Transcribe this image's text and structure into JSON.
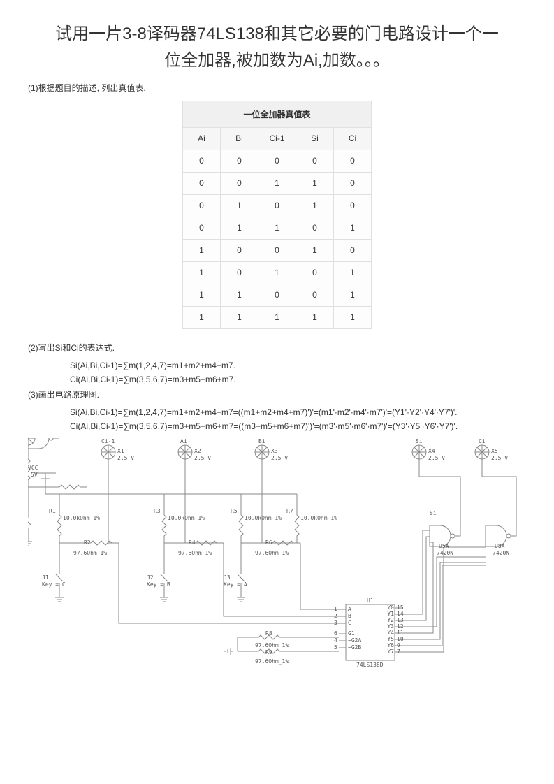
{
  "title_line1": "试用一片3-8译码器74LS138和其它必要的门电路设计一个一",
  "title_line2": "位全加器,被加数为Ai,加数。。。",
  "steps": {
    "s1": "(1)根据题目的描述, 列出真值表.",
    "s2": "(2)写出Si和Ci的表达式.",
    "s3": "(3)画出电路原理图."
  },
  "table": {
    "caption": "一位全加器真值表",
    "headers": [
      "Ai",
      "Bi",
      "Ci-1",
      "Si",
      "Ci"
    ],
    "rows": [
      [
        "0",
        "0",
        "0",
        "0",
        "0"
      ],
      [
        "0",
        "0",
        "1",
        "1",
        "0"
      ],
      [
        "0",
        "1",
        "0",
        "1",
        "0"
      ],
      [
        "0",
        "1",
        "1",
        "0",
        "1"
      ],
      [
        "1",
        "0",
        "0",
        "1",
        "0"
      ],
      [
        "1",
        "0",
        "1",
        "0",
        "1"
      ],
      [
        "1",
        "1",
        "0",
        "0",
        "1"
      ],
      [
        "1",
        "1",
        "1",
        "1",
        "1"
      ]
    ]
  },
  "formulas": {
    "f1": "Si(Ai,Bi,Ci-1)=∑m(1,2,4,7)=m1+m2+m4+m7.",
    "f2": "Ci(Ai,Bi,Ci-1)=∑m(3,5,6,7)=m3+m5+m6+m7.",
    "f3": "Si(Ai,Bi,Ci-1)=∑m(1,2,4,7)=m1+m2+m4+m7=((m1+m2+m4+m7)')'=(m1'·m2'·m4'·m7')'=(Y1'·Y2'·Y4'·Y7')'.",
    "f4": "Ci(Ai,Bi,Ci-1)=∑m(3,5,6,7)=m3+m5+m6+m7=((m3+m5+m6+m7)')'=(m3'·m5'·m6'·m7')'=(Y3'·Y5'·Y6'·Y7')'."
  },
  "circuit": {
    "vcc": "VCC",
    "vcc_v": "5V",
    "probe_v": "2.5 V",
    "probes": {
      "ci1": "Ci-1",
      "ci1_x": "X1",
      "ai": "Ai",
      "ai_x": "X2",
      "bi": "Bi",
      "bi_x": "X3",
      "si": "Si",
      "si_x": "X4",
      "ci": "Ci",
      "ci_x": "X5"
    },
    "resistors": {
      "r_top": "10.0kOhm_1%",
      "r_bot": "97.6Ohm_1%",
      "r1": "R1",
      "r2": "R2",
      "r3": "R3",
      "r4": "R4",
      "r5": "R5",
      "r6": "R6",
      "r7": "R7",
      "r8": "R8",
      "r9": "R9"
    },
    "switches": {
      "j1": "J1",
      "j1k": "Key = C",
      "j2": "J2",
      "j2k": "Key = B",
      "j3": "J3",
      "j3k": "Key = A"
    },
    "chip": {
      "ref": "U1",
      "name": "74LS138D",
      "pins_left": [
        "A",
        "B",
        "C",
        "G1",
        "~G2A",
        "~G2B"
      ],
      "pin_left_num": [
        "1",
        "2",
        "3",
        "6",
        "4",
        "5"
      ],
      "pins_right": [
        "Y0",
        "Y1",
        "Y2",
        "Y3",
        "Y4",
        "Y5",
        "Y6",
        "Y7"
      ],
      "pin_right_num": [
        "15",
        "14",
        "13",
        "12",
        "11",
        "10",
        "9",
        "7"
      ]
    },
    "gates": {
      "u5": "U5A",
      "u5p": "7420N",
      "u5out": "Si",
      "u8": "U8A",
      "u8p": "7420N"
    }
  }
}
